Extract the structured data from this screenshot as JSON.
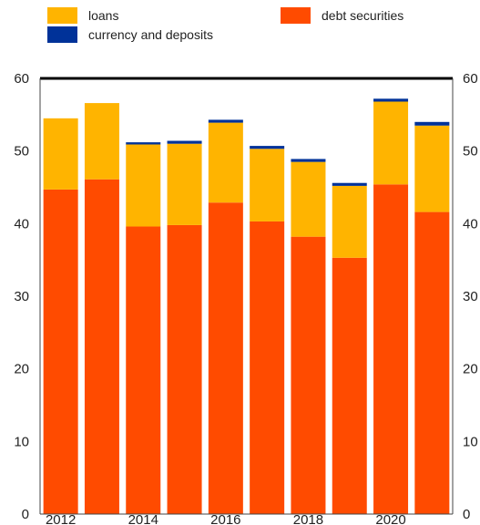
{
  "chart_data": {
    "type": "bar",
    "stacked": true,
    "categories": [
      "2012",
      "2013",
      "2014",
      "2015",
      "2016",
      "2017",
      "2018",
      "2019",
      "2020",
      "2021"
    ],
    "x_tick_labels": [
      "2012",
      "",
      "2014",
      "",
      "2016",
      "",
      "2018",
      "",
      "2020",
      ""
    ],
    "series": [
      {
        "name": "debt securities",
        "color": "#ff4b00",
        "values": [
          44.7,
          46.1,
          39.6,
          39.8,
          42.9,
          40.3,
          38.2,
          35.3,
          45.4,
          41.6
        ]
      },
      {
        "name": "loans",
        "color": "#ffb400",
        "values": [
          9.8,
          10.5,
          11.3,
          11.2,
          11.0,
          10.0,
          10.3,
          9.9,
          11.4,
          11.9
        ]
      },
      {
        "name": "currency and deposits",
        "color": "#003299",
        "values": [
          0.0,
          0.0,
          0.3,
          0.4,
          0.4,
          0.4,
          0.4,
          0.4,
          0.4,
          0.5
        ]
      }
    ],
    "ylim": [
      0,
      60
    ],
    "yticks": [
      0,
      10,
      20,
      30,
      40,
      50,
      60
    ],
    "ytick_labels": [
      "0",
      "10",
      "20",
      "30",
      "40",
      "50",
      "60"
    ],
    "right_axis": true,
    "grid": false,
    "legend_placement": "top",
    "title": "",
    "xlabel": "",
    "ylabel": ""
  }
}
